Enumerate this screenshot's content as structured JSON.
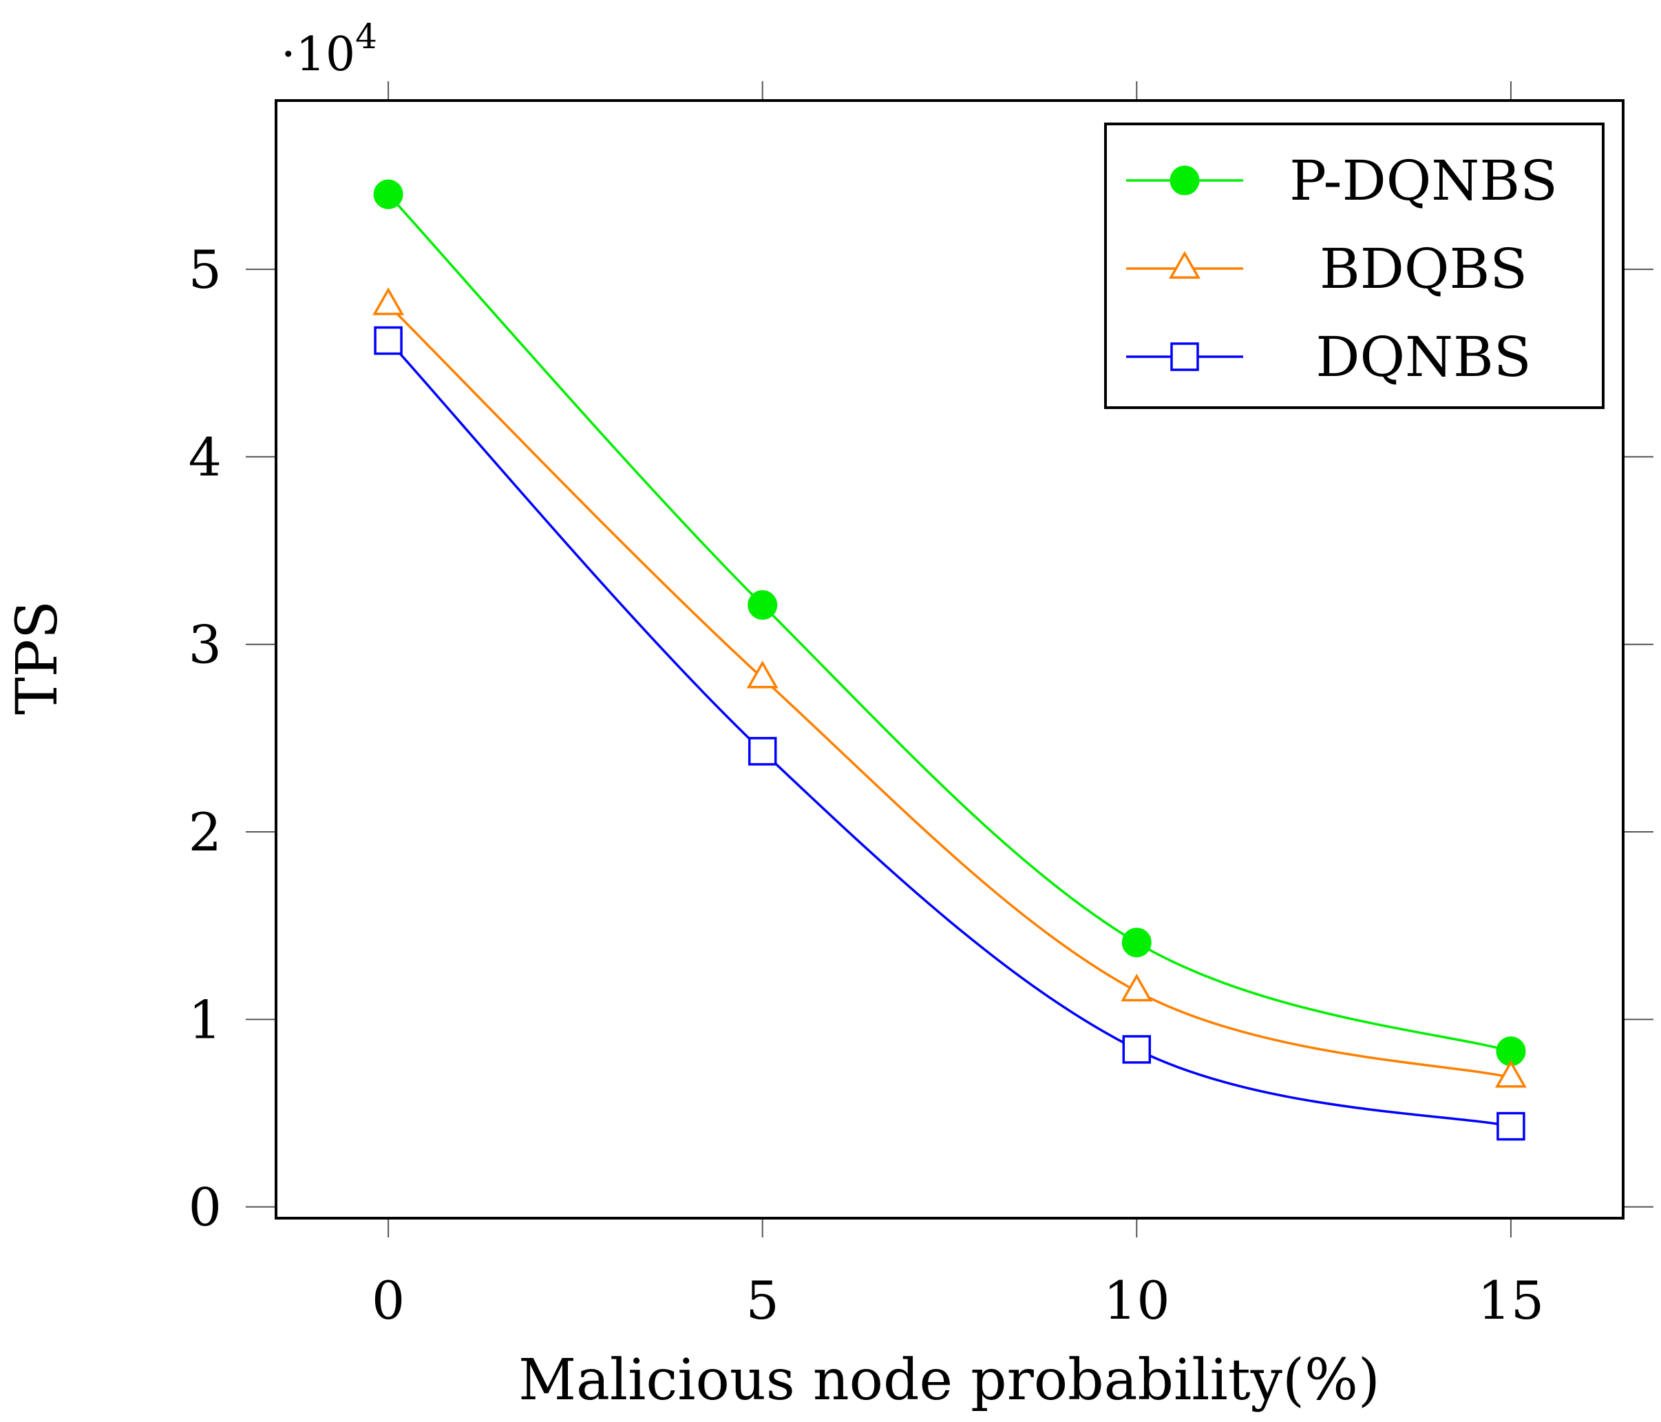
{
  "chart_data": {
    "type": "line",
    "title": "",
    "xlabel": "Malicious node probability(%)",
    "ylabel": "TPS",
    "y_scale_label": "·10",
    "y_scale_exponent": "4",
    "x": [
      0,
      5,
      10,
      15
    ],
    "x_ticks": [
      0,
      5,
      10,
      15
    ],
    "y_ticks": [
      0,
      1,
      2,
      3,
      4,
      5
    ],
    "xlim": [
      -1.5,
      16.5
    ],
    "ylim": [
      -0.06,
      5.9
    ],
    "legend_position": "top-right",
    "series": [
      {
        "name": "P-DQNBS",
        "color": "#00ee00",
        "marker": "filled-circle",
        "values": [
          5.4,
          3.21,
          1.41,
          0.83
        ]
      },
      {
        "name": "BDQBS",
        "color": "#ff8000",
        "marker": "open-triangle",
        "values": [
          4.81,
          2.82,
          1.15,
          0.69
        ]
      },
      {
        "name": "DQNBS",
        "color": "#0000ff",
        "marker": "open-square",
        "values": [
          4.62,
          2.43,
          0.84,
          0.43
        ]
      }
    ]
  }
}
